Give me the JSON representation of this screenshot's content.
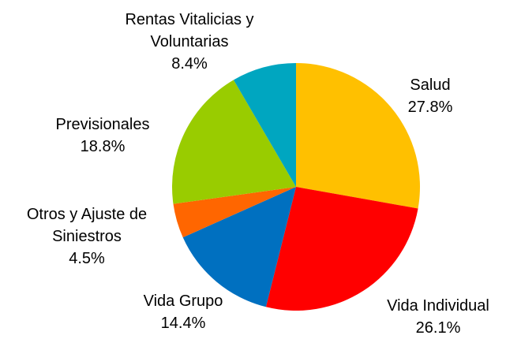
{
  "chart_data": {
    "type": "pie",
    "categories": [
      "Salud",
      "Vida Individual",
      "Vida Grupo",
      "Otros y Ajuste de Siniestros",
      "Previsionales",
      "Rentas Vitalicias y Voluntarias"
    ],
    "values": [
      27.8,
      26.1,
      14.4,
      4.5,
      18.8,
      8.4
    ],
    "value_labels": [
      "27.8%",
      "26.1%",
      "14.4%",
      "4.5%",
      "18.8%",
      "8.4%"
    ],
    "colors": [
      "#ffc000",
      "#ff0000",
      "#0070c0",
      "#ff6600",
      "#99cc00",
      "#00a6c0"
    ]
  }
}
